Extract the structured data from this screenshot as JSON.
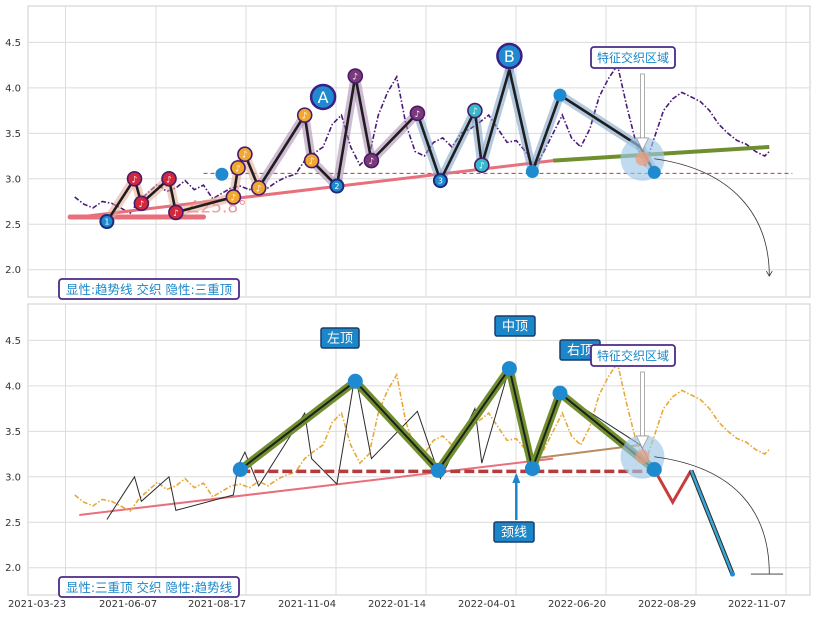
{
  "chart_data": [
    {
      "type": "line",
      "caption": "显性:趋势线 交织 隐性:三重顶",
      "ylim": [
        1.7,
        4.9
      ],
      "yticks": [
        "4.5",
        "4.0",
        "3.5",
        "3.0",
        "2.5",
        "2.0"
      ],
      "grid": true,
      "price_series": [
        [
          4,
          2.8
        ],
        [
          8,
          2.72
        ],
        [
          12,
          2.68
        ],
        [
          16,
          2.75
        ],
        [
          20,
          2.73
        ],
        [
          24,
          2.68
        ],
        [
          28,
          2.62
        ],
        [
          32,
          2.76
        ],
        [
          36,
          2.85
        ],
        [
          40,
          2.94
        ],
        [
          44,
          2.86
        ],
        [
          48,
          2.9
        ],
        [
          52,
          2.98
        ],
        [
          56,
          2.88
        ],
        [
          60,
          2.93
        ],
        [
          64,
          2.78
        ],
        [
          68,
          2.84
        ],
        [
          72,
          2.9
        ],
        [
          76,
          2.92
        ],
        [
          80,
          2.88
        ],
        [
          84,
          2.95
        ],
        [
          88,
          2.9
        ],
        [
          92,
          2.97
        ],
        [
          96,
          3.02
        ],
        [
          100,
          3.05
        ],
        [
          104,
          3.2
        ],
        [
          108,
          3.28
        ],
        [
          112,
          3.35
        ],
        [
          116,
          3.6
        ],
        [
          120,
          3.7
        ],
        [
          124,
          3.35
        ],
        [
          128,
          3.15
        ],
        [
          132,
          3.25
        ],
        [
          136,
          3.7
        ],
        [
          140,
          3.95
        ],
        [
          144,
          4.12
        ],
        [
          148,
          3.6
        ],
        [
          152,
          3.3
        ],
        [
          156,
          3.25
        ],
        [
          160,
          3.4
        ],
        [
          164,
          3.45
        ],
        [
          168,
          3.35
        ],
        [
          172,
          3.5
        ],
        [
          176,
          3.55
        ],
        [
          180,
          3.62
        ],
        [
          184,
          3.7
        ],
        [
          188,
          3.55
        ],
        [
          192,
          3.4
        ],
        [
          196,
          3.42
        ],
        [
          200,
          3.3
        ],
        [
          204,
          3.12
        ],
        [
          208,
          3.3
        ],
        [
          212,
          3.5
        ],
        [
          216,
          3.7
        ],
        [
          220,
          3.45
        ],
        [
          224,
          3.35
        ],
        [
          228,
          3.55
        ],
        [
          232,
          3.9
        ],
        [
          236,
          4.1
        ],
        [
          240,
          4.25
        ],
        [
          244,
          3.8
        ],
        [
          248,
          3.4
        ],
        [
          252,
          3.15
        ],
        [
          256,
          3.45
        ],
        [
          260,
          3.75
        ],
        [
          264,
          3.88
        ],
        [
          268,
          3.95
        ],
        [
          272,
          3.9
        ],
        [
          276,
          3.85
        ],
        [
          280,
          3.75
        ],
        [
          284,
          3.6
        ],
        [
          288,
          3.5
        ],
        [
          292,
          3.42
        ],
        [
          296,
          3.38
        ],
        [
          300,
          3.3
        ],
        [
          304,
          3.25
        ],
        [
          306,
          3.3
        ]
      ],
      "trendline": [
        [
          6,
          2.58
        ],
        [
          212,
          3.2
        ],
        [
          306,
          3.35
        ]
      ],
      "trendline_label": "∠25.8°",
      "neckline": {
        "from_x": 60,
        "to_x": 316,
        "y": 3.06
      },
      "markers": [
        {
          "day": 18,
          "value": 2.53,
          "label": "1",
          "kind": "trough"
        },
        {
          "day": 30,
          "value": 3.0,
          "label": "♪",
          "kind": "peak"
        },
        {
          "day": 33,
          "value": 2.73,
          "label": "♪",
          "kind": "trough"
        },
        {
          "day": 45,
          "value": 3.0,
          "label": "♪",
          "kind": "peak"
        },
        {
          "day": 48,
          "value": 2.63,
          "label": "♪",
          "kind": "trough"
        },
        {
          "day": 73,
          "value": 2.8,
          "label": "♪",
          "kind": "trough"
        },
        {
          "day": 75,
          "value": 3.12,
          "label": "♪",
          "kind": "peak"
        },
        {
          "day": 78,
          "value": 3.27,
          "label": "♪",
          "kind": "peak"
        },
        {
          "day": 84,
          "value": 2.9,
          "label": "♪",
          "kind": "trough"
        },
        {
          "day": 104,
          "value": 3.7,
          "label": "♪",
          "kind": "peak"
        },
        {
          "day": 107,
          "value": 3.2,
          "label": "♪",
          "kind": "trough"
        },
        {
          "day": 112,
          "value": 3.9,
          "label": "A",
          "kind": "big"
        },
        {
          "day": 118,
          "value": 2.92,
          "label": "2",
          "kind": "trough"
        },
        {
          "day": 126,
          "value": 4.13,
          "label": "♪",
          "kind": "peak"
        },
        {
          "day": 133,
          "value": 3.2,
          "label": "♪",
          "kind": "trough"
        },
        {
          "day": 153,
          "value": 3.72,
          "label": "♪",
          "kind": "peak"
        },
        {
          "day": 163,
          "value": 2.98,
          "label": "3",
          "kind": "trough"
        },
        {
          "day": 178,
          "value": 3.75,
          "label": "♪",
          "kind": "peak"
        },
        {
          "day": 181,
          "value": 3.15,
          "label": "♪",
          "kind": "trough"
        },
        {
          "day": 193,
          "value": 4.35,
          "label": "B",
          "kind": "big"
        }
      ],
      "zigzag": [
        [
          18,
          2.53
        ],
        [
          30,
          3.0
        ],
        [
          33,
          2.73
        ],
        [
          45,
          3.0
        ],
        [
          48,
          2.63
        ],
        [
          73,
          2.8
        ],
        [
          75,
          3.12
        ],
        [
          78,
          3.27
        ],
        [
          84,
          2.9
        ],
        [
          104,
          3.7
        ],
        [
          107,
          3.2
        ],
        [
          118,
          2.92
        ],
        [
          126,
          4.13
        ],
        [
          133,
          3.2
        ],
        [
          153,
          3.72
        ],
        [
          163,
          2.98
        ],
        [
          178,
          3.75
        ],
        [
          181,
          3.15
        ],
        [
          193,
          4.2
        ],
        [
          203,
          3.08
        ],
        [
          215,
          3.92
        ],
        [
          250,
          3.35
        ],
        [
          256,
          3.07
        ]
      ],
      "overlay_arrow_label": "特征交织区域",
      "zone_center": {
        "day": 250,
        "value": 3.22
      }
    },
    {
      "type": "line",
      "caption": "显性:三重顶 交织 隐性:趋势线",
      "ylim": [
        1.7,
        4.9
      ],
      "yticks": [
        "4.5",
        "4.0",
        "3.5",
        "3.0",
        "2.5",
        "2.0"
      ],
      "xticks": [
        "2021-03-23",
        "2021-06-07",
        "2021-08-17",
        "2021-11-04",
        "2022-01-14",
        "2022-04-01",
        "2022-06-20",
        "2022-08-29",
        "2022-11-07"
      ],
      "pattern_points": [
        [
          76,
          3.08
        ],
        [
          126,
          4.05
        ],
        [
          162,
          3.07
        ],
        [
          193,
          4.19
        ],
        [
          203,
          3.09
        ],
        [
          215,
          3.92
        ],
        [
          256,
          3.08
        ]
      ],
      "projection": [
        [
          256,
          3.08
        ],
        [
          264,
          2.72
        ],
        [
          272,
          3.07
        ],
        [
          290,
          1.93
        ]
      ],
      "neckline": {
        "from_x": 76,
        "to_x": 256,
        "y": 3.06
      },
      "trendline": [
        [
          6,
          2.58
        ],
        [
          212,
          3.2
        ]
      ],
      "trend_ext": [
        [
          203,
          3.2
        ],
        [
          250,
          3.35
        ]
      ],
      "labels": {
        "left_top": "左顶",
        "middle_top": "中顶",
        "right_top": "右顶",
        "neck": "颈线",
        "zone": "特征交织区域"
      }
    }
  ],
  "colors": {
    "trend": "#e8707c",
    "neck": "#b43c3c",
    "pattern": "#6f8f2e",
    "pattern_dark": "#222222",
    "blue_node": "#1f8ad0",
    "tag_bg": "#1b87c9",
    "tag_border": "#1a3d6e",
    "caption_border": "#4b2a8a",
    "caption_text": "#1b87c9"
  }
}
